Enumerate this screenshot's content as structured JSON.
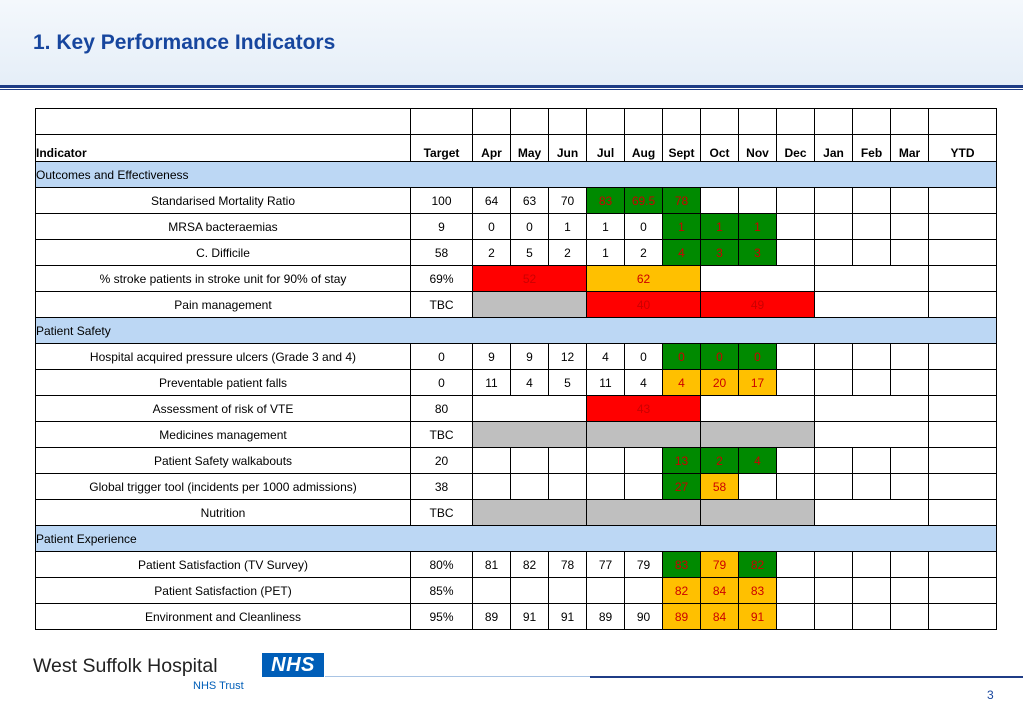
{
  "page": {
    "title": "1. Key Performance Indicators",
    "page_number": "3"
  },
  "table": {
    "headers": {
      "indicator": "Indicator",
      "target": "Target",
      "months": [
        "Apr",
        "May",
        "Jun",
        "Jul",
        "Aug",
        "Sept",
        "Oct",
        "Nov",
        "Dec",
        "Jan",
        "Feb",
        "Mar"
      ],
      "ytd": "YTD"
    },
    "sections": [
      {
        "name": "Outcomes and Effectiveness",
        "rows": [
          {
            "indicator": "Standarised Mortality Ratio",
            "target": "100",
            "cells": [
              {
                "v": "64"
              },
              {
                "v": "63"
              },
              {
                "v": "70"
              },
              {
                "v": "83",
                "s": "green"
              },
              {
                "v": "69.5",
                "s": "green"
              },
              {
                "v": "78",
                "s": "green"
              },
              {
                "v": ""
              },
              {
                "v": ""
              },
              {
                "v": ""
              },
              {
                "v": ""
              },
              {
                "v": ""
              },
              {
                "v": ""
              },
              {
                "v": ""
              }
            ]
          },
          {
            "indicator": "MRSA bacteraemias",
            "target": "9",
            "cells": [
              {
                "v": "0"
              },
              {
                "v": "0"
              },
              {
                "v": "1"
              },
              {
                "v": "1"
              },
              {
                "v": "0"
              },
              {
                "v": "1",
                "s": "green"
              },
              {
                "v": "1",
                "s": "green"
              },
              {
                "v": "1",
                "s": "green"
              },
              {
                "v": ""
              },
              {
                "v": ""
              },
              {
                "v": ""
              },
              {
                "v": ""
              },
              {
                "v": ""
              }
            ]
          },
          {
            "indicator": "C. Difficile",
            "target": "58",
            "cells": [
              {
                "v": "2"
              },
              {
                "v": "5"
              },
              {
                "v": "2"
              },
              {
                "v": "1"
              },
              {
                "v": "2"
              },
              {
                "v": "4",
                "s": "green"
              },
              {
                "v": "3",
                "s": "green"
              },
              {
                "v": "3",
                "s": "green"
              },
              {
                "v": ""
              },
              {
                "v": ""
              },
              {
                "v": ""
              },
              {
                "v": ""
              },
              {
                "v": ""
              }
            ]
          },
          {
            "indicator": "% stroke patients in stroke unit for 90% of stay",
            "target": "69%",
            "cells": [
              {
                "v": "52",
                "s": "red",
                "span": 3
              },
              {
                "v": "62",
                "s": "amber",
                "span": 3
              },
              {
                "v": "",
                "span": 3
              },
              {
                "v": "",
                "span": 3
              },
              {
                "v": ""
              }
            ]
          },
          {
            "indicator": "Pain management",
            "target": "TBC",
            "cells": [
              {
                "v": "",
                "s": "grey",
                "span": 3
              },
              {
                "v": "40",
                "s": "red",
                "span": 3
              },
              {
                "v": "49",
                "s": "red",
                "span": 3
              },
              {
                "v": "",
                "span": 3
              },
              {
                "v": ""
              }
            ]
          }
        ]
      },
      {
        "name": "Patient Safety",
        "rows": [
          {
            "indicator": "Hospital acquired pressure ulcers (Grade 3 and 4)",
            "target": "0",
            "cells": [
              {
                "v": "9"
              },
              {
                "v": "9"
              },
              {
                "v": "12"
              },
              {
                "v": "4"
              },
              {
                "v": "0"
              },
              {
                "v": "0",
                "s": "green"
              },
              {
                "v": "0",
                "s": "green"
              },
              {
                "v": "0",
                "s": "green"
              },
              {
                "v": ""
              },
              {
                "v": ""
              },
              {
                "v": ""
              },
              {
                "v": ""
              },
              {
                "v": ""
              }
            ]
          },
          {
            "indicator": "Preventable patient falls",
            "target": "0",
            "cells": [
              {
                "v": "11"
              },
              {
                "v": "4"
              },
              {
                "v": "5"
              },
              {
                "v": "11"
              },
              {
                "v": "4"
              },
              {
                "v": "4",
                "s": "amber"
              },
              {
                "v": "20",
                "s": "amber"
              },
              {
                "v": "17",
                "s": "amber"
              },
              {
                "v": ""
              },
              {
                "v": ""
              },
              {
                "v": ""
              },
              {
                "v": ""
              },
              {
                "v": ""
              }
            ]
          },
          {
            "indicator": "Assessment of risk of VTE",
            "target": "80",
            "cells": [
              {
                "v": "",
                "span": 3
              },
              {
                "v": "43",
                "s": "red",
                "span": 3
              },
              {
                "v": "",
                "span": 3
              },
              {
                "v": "",
                "span": 3
              },
              {
                "v": ""
              }
            ]
          },
          {
            "indicator": "Medicines management",
            "target": "TBC",
            "cells": [
              {
                "v": "",
                "s": "grey",
                "span": 3
              },
              {
                "v": "",
                "s": "grey",
                "span": 3
              },
              {
                "v": "",
                "s": "grey",
                "span": 3
              },
              {
                "v": "",
                "span": 3
              },
              {
                "v": ""
              }
            ]
          },
          {
            "indicator": "Patient Safety walkabouts",
            "target": "20",
            "cells": [
              {
                "v": ""
              },
              {
                "v": ""
              },
              {
                "v": ""
              },
              {
                "v": ""
              },
              {
                "v": ""
              },
              {
                "v": "13",
                "s": "green"
              },
              {
                "v": "2",
                "s": "green"
              },
              {
                "v": "4",
                "s": "green"
              },
              {
                "v": ""
              },
              {
                "v": ""
              },
              {
                "v": ""
              },
              {
                "v": ""
              },
              {
                "v": ""
              }
            ]
          },
          {
            "indicator": "Global trigger tool (incidents per 1000 admissions)",
            "target": "38",
            "cells": [
              {
                "v": ""
              },
              {
                "v": ""
              },
              {
                "v": ""
              },
              {
                "v": ""
              },
              {
                "v": ""
              },
              {
                "v": "27",
                "s": "green"
              },
              {
                "v": "58",
                "s": "amber"
              },
              {
                "v": ""
              },
              {
                "v": ""
              },
              {
                "v": ""
              },
              {
                "v": ""
              },
              {
                "v": ""
              },
              {
                "v": ""
              }
            ]
          },
          {
            "indicator": "Nutrition",
            "target": "TBC",
            "cells": [
              {
                "v": "",
                "s": "grey",
                "span": 3
              },
              {
                "v": "",
                "s": "grey",
                "span": 3
              },
              {
                "v": "",
                "s": "grey",
                "span": 3
              },
              {
                "v": "",
                "span": 3
              },
              {
                "v": ""
              }
            ]
          }
        ]
      },
      {
        "name": "Patient Experience",
        "rows": [
          {
            "indicator": "Patient Satisfaction (TV Survey)",
            "target": "80%",
            "cells": [
              {
                "v": "81"
              },
              {
                "v": "82"
              },
              {
                "v": "78"
              },
              {
                "v": "77"
              },
              {
                "v": "79"
              },
              {
                "v": "83",
                "s": "green"
              },
              {
                "v": "79",
                "s": "amber"
              },
              {
                "v": "82",
                "s": "green"
              },
              {
                "v": ""
              },
              {
                "v": ""
              },
              {
                "v": ""
              },
              {
                "v": ""
              },
              {
                "v": ""
              }
            ]
          },
          {
            "indicator": "Patient Satisfaction (PET)",
            "target": "85%",
            "cells": [
              {
                "v": ""
              },
              {
                "v": ""
              },
              {
                "v": ""
              },
              {
                "v": ""
              },
              {
                "v": ""
              },
              {
                "v": "82",
                "s": "amber"
              },
              {
                "v": "84",
                "s": "amber"
              },
              {
                "v": "83",
                "s": "amber"
              },
              {
                "v": ""
              },
              {
                "v": ""
              },
              {
                "v": ""
              },
              {
                "v": ""
              },
              {
                "v": ""
              }
            ]
          },
          {
            "indicator": "Environment and Cleanliness",
            "target": "95%",
            "cells": [
              {
                "v": "89"
              },
              {
                "v": "91"
              },
              {
                "v": "91"
              },
              {
                "v": "89"
              },
              {
                "v": "90"
              },
              {
                "v": "89",
                "s": "amber"
              },
              {
                "v": "84",
                "s": "amber"
              },
              {
                "v": "91",
                "s": "amber"
              },
              {
                "v": ""
              },
              {
                "v": ""
              },
              {
                "v": ""
              },
              {
                "v": ""
              },
              {
                "v": ""
              }
            ]
          }
        ]
      }
    ]
  },
  "footer": {
    "org_name": "West Suffolk Hospital",
    "nhs_logo": "NHS",
    "org_sub": "NHS Trust"
  },
  "colors": {
    "title": "#17469e",
    "section_bg": "#bcd7f4",
    "green": "#008a00",
    "amber": "#ffc000",
    "red": "#ff0000",
    "grey": "#bfbfbf",
    "value_text_on_status": "#cc0000"
  }
}
